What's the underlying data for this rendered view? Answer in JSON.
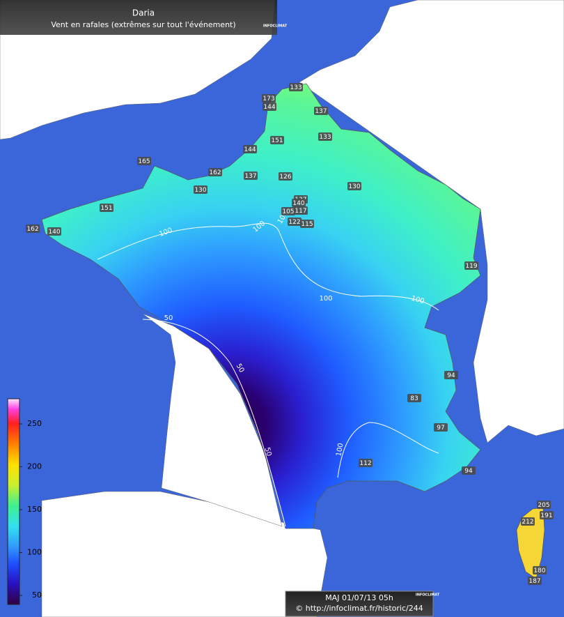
{
  "header": {
    "title": "Daria",
    "subtitle": "Vent en rafales (extrêmes sur tout l'événement)",
    "logo": "INFOCLIMAT"
  },
  "stations": [
    133,
    173,
    144,
    137,
    151,
    133,
    144,
    165,
    162,
    137,
    126,
    130,
    130,
    151,
    162,
    140,
    137,
    105,
    140,
    117,
    122,
    115,
    119,
    94,
    83,
    97,
    112,
    94,
    205,
    191,
    212,
    180,
    187
  ],
  "contour_labels": [
    100,
    100,
    100,
    100,
    100,
    100,
    50,
    50,
    50
  ],
  "legend": {
    "ticks": [
      50,
      100,
      150,
      200,
      250
    ]
  },
  "footer": {
    "updated": "MAJ 01/07/13 05h",
    "url": "© http://infoclimat.fr/historic/244",
    "logo": "INFOCLIMAT"
  }
}
